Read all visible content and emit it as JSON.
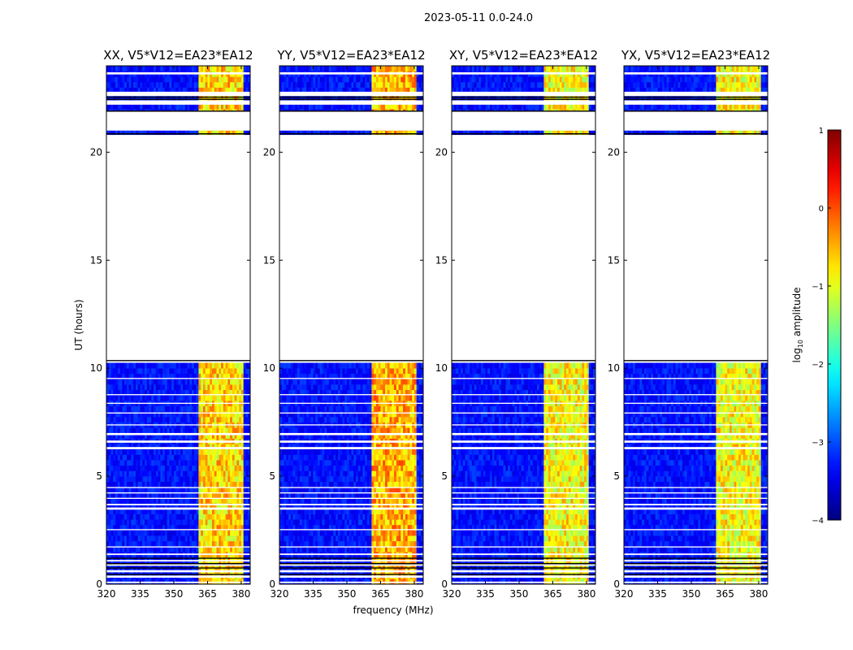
{
  "chart_data": {
    "type": "heatmap",
    "suptitle": "2023-05-11 0.0-24.0",
    "xlabel": "frequency (MHz)",
    "ylabel": "UT (hours)",
    "x_ticks": [
      320,
      335,
      350,
      365,
      380
    ],
    "x_tick_labels": [
      "320",
      "335",
      "350",
      "365",
      "380"
    ],
    "y_ticks": [
      0,
      5,
      10,
      15,
      20
    ],
    "y_tick_labels": [
      "0",
      "5",
      "10",
      "15",
      "20"
    ],
    "xlim": [
      320,
      384
    ],
    "ylim": [
      0,
      24
    ],
    "panels": [
      {
        "title": "XX, V5*V12=EA23*EA12",
        "corr": "XX",
        "signal_x": [
          [
            361.5,
            366
          ],
          [
            366.5,
            370.5
          ],
          [
            371,
            375.5
          ],
          [
            376.5,
            380.5
          ]
        ],
        "signal_level": -0.8
      },
      {
        "title": "YY, V5*V12=EA23*EA12",
        "corr": "YY",
        "signal_x": [
          [
            361.5,
            366
          ],
          [
            366.5,
            370.5
          ],
          [
            371,
            375.5
          ],
          [
            376.5,
            380.5
          ]
        ],
        "signal_level": -0.6
      },
      {
        "title": "XY, V5*V12=EA23*EA12",
        "corr": "XY",
        "signal_x": [
          [
            361.5,
            366
          ],
          [
            366.5,
            370.5
          ],
          [
            371,
            375.5
          ],
          [
            376.5,
            380.5
          ]
        ],
        "signal_level": -1.0
      },
      {
        "title": "YX, V5*V12=EA23*EA12",
        "corr": "YX",
        "signal_x": [
          [
            361.5,
            366
          ],
          [
            366.5,
            370.5
          ],
          [
            371,
            375.5
          ],
          [
            376.5,
            380.5
          ]
        ],
        "signal_level": -1.0
      }
    ],
    "flagged_time_ranges_hours": [
      [
        0.05,
        0.12
      ],
      [
        0.3,
        0.4
      ],
      [
        0.55,
        0.65
      ],
      [
        0.85,
        0.92
      ],
      [
        1.05,
        1.12
      ],
      [
        1.35,
        1.42
      ],
      [
        1.7,
        1.75
      ],
      [
        2.5,
        2.55
      ],
      [
        3.45,
        3.55
      ],
      [
        3.65,
        3.72
      ],
      [
        3.95,
        4.0
      ],
      [
        4.2,
        4.25
      ],
      [
        4.45,
        4.5
      ],
      [
        6.25,
        6.35
      ],
      [
        6.55,
        6.65
      ],
      [
        6.9,
        7.0
      ],
      [
        7.35,
        7.4
      ],
      [
        7.9,
        7.95
      ],
      [
        8.35,
        8.4
      ],
      [
        8.75,
        8.8
      ],
      [
        9.5,
        9.55
      ],
      [
        10.4,
        20.8
      ],
      [
        21.0,
        21.9
      ],
      [
        22.2,
        22.4
      ],
      [
        22.6,
        22.8
      ],
      [
        23.6,
        23.7
      ]
    ],
    "background_level": -3.3,
    "colorbar": {
      "label": "log10 amplitude",
      "label_prefix": "log",
      "label_sub": "10",
      "label_suffix": " amplitude",
      "min": -4,
      "max": 1,
      "ticks": [
        1,
        0,
        -1,
        -2,
        -3,
        -4
      ],
      "tick_labels": [
        "1",
        "0",
        "−1",
        "−2",
        "−3",
        "−4"
      ],
      "colormap": "jet"
    }
  }
}
